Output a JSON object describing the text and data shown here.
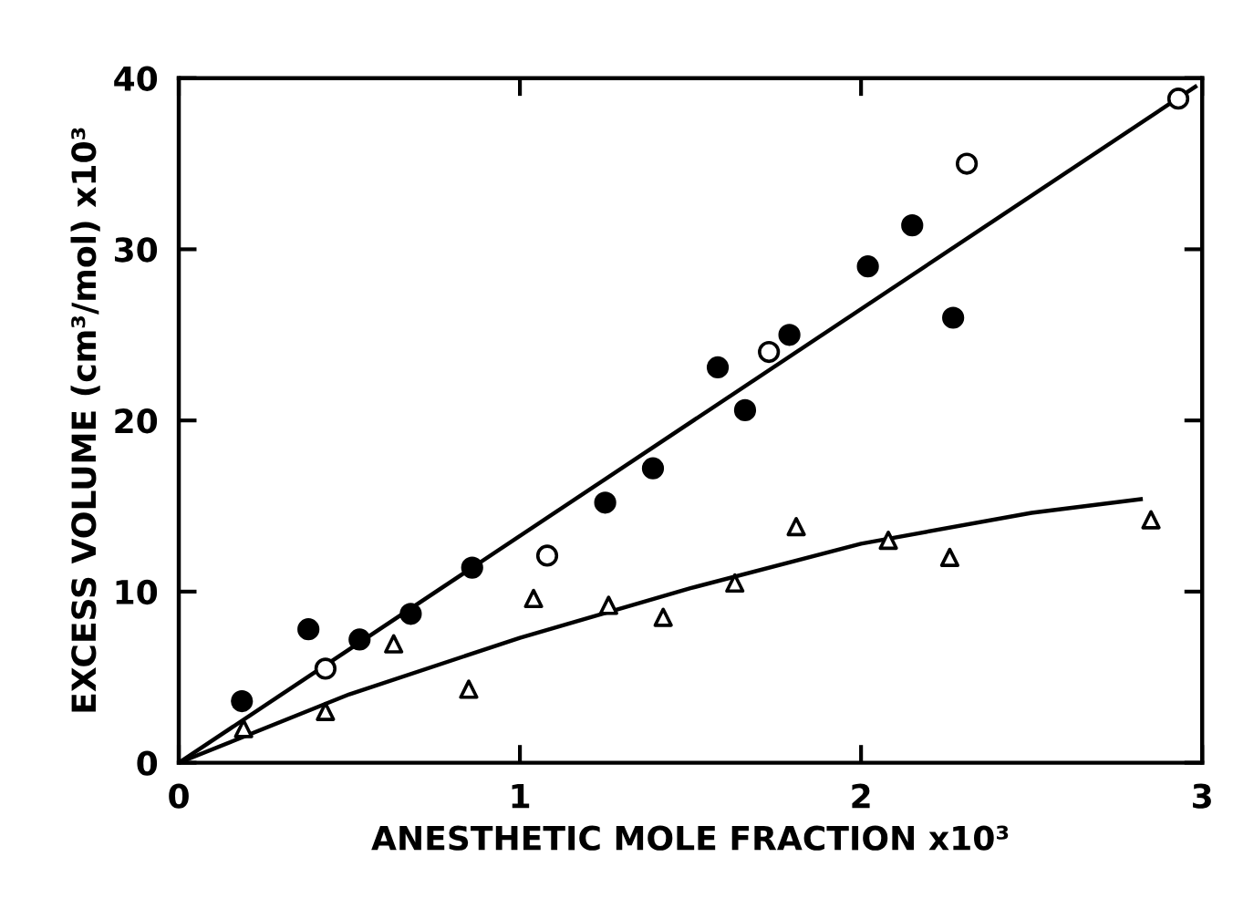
{
  "chart_data": {
    "type": "scatter",
    "xlabel": "ANESTHETIC MOLE FRACTION x10³",
    "ylabel": "EXCESS VOLUME (cm³/mol) x10³",
    "xlim": [
      0,
      3
    ],
    "ylim": [
      0,
      40
    ],
    "xticks": [
      0,
      1,
      2,
      3
    ],
    "yticks": [
      0,
      10,
      20,
      30,
      40
    ],
    "grid": false,
    "legend": false,
    "series": [
      {
        "marker": "circle",
        "color": "#000000",
        "x": [
          0.185,
          0.38,
          0.53,
          0.68,
          0.86,
          1.25,
          1.39,
          1.58,
          1.66,
          1.79,
          2.02,
          2.15,
          2.27
        ],
        "values": [
          3.6,
          7.8,
          7.2,
          8.7,
          11.4,
          15.2,
          17.2,
          23.1,
          20.6,
          25.0,
          29.0,
          31.4,
          26.0
        ]
      },
      {
        "marker": "circle",
        "color": "#ffffff",
        "x": [
          0.43,
          1.08,
          1.73,
          2.31,
          2.93
        ],
        "values": [
          5.5,
          12.1,
          24.0,
          35.0,
          38.8
        ]
      },
      {
        "marker": "triangle",
        "color": "#ffffff",
        "x": [
          0.19,
          0.43,
          0.63,
          0.85,
          1.04,
          1.26,
          1.42,
          1.63,
          1.81,
          2.08,
          2.26,
          2.85
        ],
        "values": [
          2.0,
          3.0,
          6.95,
          4.3,
          9.6,
          9.2,
          8.5,
          10.5,
          13.8,
          13.0,
          12.0,
          14.2
        ]
      },
      {
        "type": "line",
        "marker": "none",
        "color": "#000000",
        "x": [
          0,
          2.98
        ],
        "values": [
          0,
          39.5
        ]
      },
      {
        "type": "line",
        "marker": "none",
        "color": "#000000",
        "x": [
          0,
          0.5,
          1.0,
          1.5,
          2.0,
          2.5,
          2.82
        ],
        "values": [
          0,
          4.0,
          7.3,
          10.2,
          12.8,
          14.6,
          15.4
        ]
      }
    ]
  }
}
